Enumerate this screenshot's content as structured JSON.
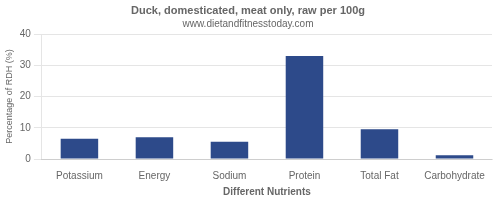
{
  "chart_data": {
    "type": "bar",
    "title": "Duck, domesticated, meat only, raw per 100g",
    "subtitle": "www.dietandfitnesstoday.com",
    "xlabel": "Different Nutrients",
    "ylabel": "Percentage of RDH (%)",
    "categories": [
      "Potassium",
      "Energy",
      "Sodium",
      "Protein",
      "Total Fat",
      "Carbohydrate"
    ],
    "values": [
      6.5,
      7.0,
      5.5,
      33.0,
      9.5,
      1.2
    ],
    "color": "#2d4a8a",
    "ylim": [
      0,
      40
    ],
    "yticks": [
      0,
      10,
      20,
      30,
      40
    ],
    "grid": true
  }
}
